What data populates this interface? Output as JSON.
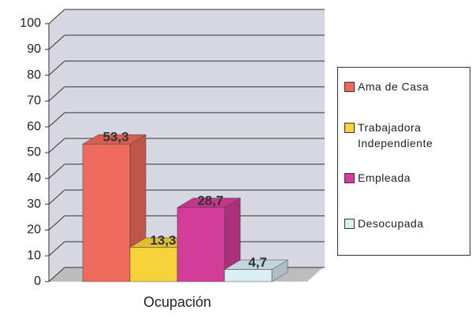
{
  "chart_data": {
    "type": "bar3d",
    "x_label": "Ocupación",
    "categories": [
      "Ocupación"
    ],
    "ylim": [
      0,
      100
    ],
    "yticks": [
      0,
      10,
      20,
      30,
      40,
      50,
      60,
      70,
      80,
      90,
      100
    ],
    "grid": true,
    "legend": "right",
    "series": [
      {
        "name": "Ama de Casa",
        "color": "#ee6a5c",
        "values": [
          53.3
        ],
        "value_labels": [
          "53,3"
        ]
      },
      {
        "name": "Trabajadora Independiente",
        "color": "#f5d23a",
        "values": [
          13.3
        ],
        "value_labels": [
          "13,3"
        ]
      },
      {
        "name": "Empleada",
        "color": "#d43c9a",
        "values": [
          28.7
        ],
        "value_labels": [
          "28,7"
        ]
      },
      {
        "name": "Desocupada",
        "color": "#d8eef5",
        "values": [
          4.7
        ],
        "value_labels": [
          "4,7"
        ]
      }
    ]
  }
}
